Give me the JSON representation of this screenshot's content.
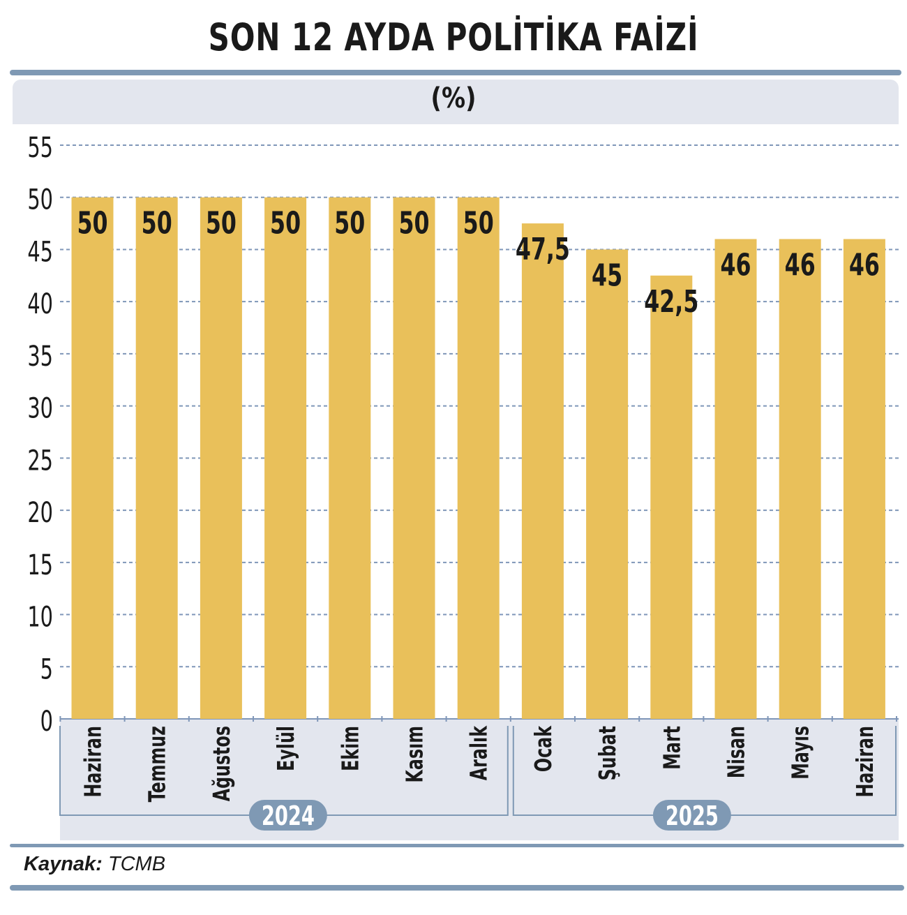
{
  "title": "SON 12 AYDA POLİTİKA FAİZİ",
  "unit": "(%)",
  "source_label": "Kaynak:",
  "source_value": "TCMB",
  "colors": {
    "bar": "#e9c05a",
    "grid": "#7f96b8",
    "band": "#e3e6ee",
    "accent": "#7f99b4",
    "year_pill": "#7f99b4"
  },
  "chart_data": {
    "type": "bar",
    "categories": [
      "Haziran",
      "Temmuz",
      "Ağustos",
      "Eylül",
      "Ekim",
      "Kasım",
      "Aralık",
      "Ocak",
      "Şubat",
      "Mart",
      "Nisan",
      "Mayıs",
      "Haziran"
    ],
    "values": [
      50,
      50,
      50,
      50,
      50,
      50,
      50,
      47.5,
      45,
      42.5,
      46,
      46,
      46
    ],
    "value_labels": [
      "50",
      "50",
      "50",
      "50",
      "50",
      "50",
      "50",
      "47,5",
      "45",
      "42,5",
      "46",
      "46",
      "46"
    ],
    "year_groups": [
      {
        "label": "2024",
        "start": 0,
        "end": 6
      },
      {
        "label": "2025",
        "start": 7,
        "end": 12
      }
    ],
    "ylim": [
      0,
      55
    ],
    "yticks": [
      0,
      5,
      10,
      15,
      20,
      25,
      30,
      35,
      40,
      45,
      50,
      55
    ],
    "grid": true,
    "grid_style": "dashed"
  }
}
